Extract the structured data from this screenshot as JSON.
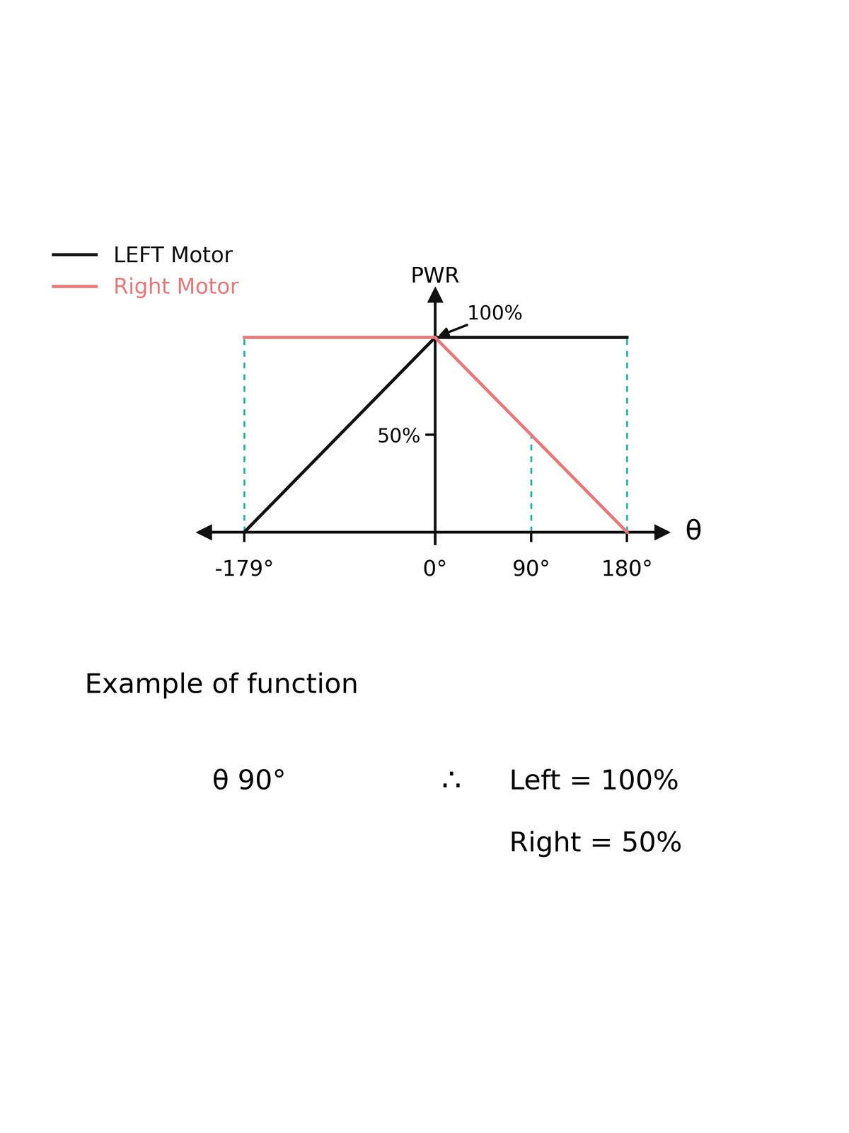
{
  "chart_data": {
    "type": "line",
    "x_label": "θ",
    "y_label": "PWR",
    "x": [
      -179,
      0,
      180
    ],
    "series": [
      {
        "name": "LEFT Motor",
        "color": "#111111",
        "values": [
          0,
          100,
          100
        ]
      },
      {
        "name": "Right Motor",
        "color": "#e8787a",
        "values": [
          100,
          100,
          0
        ]
      }
    ],
    "xlim": [
      -217,
      213
    ],
    "ylim": [
      -6,
      122
    ],
    "xticks": [
      {
        "value": -179,
        "label": "-179°"
      },
      {
        "value": 0,
        "label": "0°"
      },
      {
        "value": 90,
        "label": "90°"
      },
      {
        "value": 180,
        "label": "180°"
      }
    ],
    "yticks": [
      {
        "value": 50,
        "label": "50%"
      }
    ],
    "legend": "upper left",
    "annotations": [
      {
        "x": 0,
        "y": 100,
        "text": "100%"
      }
    ],
    "guides": [
      {
        "x": -179,
        "y": 100
      },
      {
        "x": 90,
        "y": 50
      },
      {
        "x": 180,
        "y": 100
      }
    ]
  },
  "example": {
    "heading": "Example of function",
    "input": "θ 90°",
    "therefore": "∴",
    "results": [
      "Left = 100%",
      "Right = 50%"
    ]
  }
}
